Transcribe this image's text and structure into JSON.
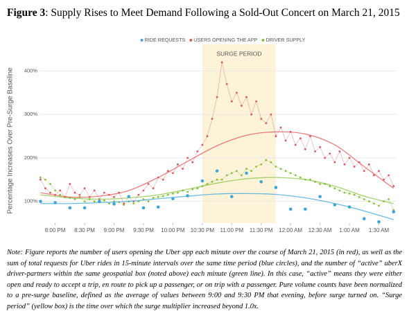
{
  "chart_data": {
    "type": "line",
    "title_label": "Figure 3",
    "title": ": Supply Rises to Meet Demand Following a Sold-Out Concert on March 21, 2015",
    "y_label": "Percentage Increases Over Pre-Surge Baseline",
    "surge": {
      "label": "SURGE PERIOD",
      "x": [
        1350,
        1425
      ],
      "color": "#fcf3d9"
    },
    "xlim": [
      1184,
      1548
    ],
    "xticks": [
      {
        "value": 1200,
        "label": "8:00 PM"
      },
      {
        "value": 1230,
        "label": "8:30 PM"
      },
      {
        "value": 1260,
        "label": "9:00 PM"
      },
      {
        "value": 1290,
        "label": "9:30 PM"
      },
      {
        "value": 1320,
        "label": "10:00 PM"
      },
      {
        "value": 1350,
        "label": "10:30 PM"
      },
      {
        "value": 1380,
        "label": "11:00 PM"
      },
      {
        "value": 1410,
        "label": "11:30 PM"
      },
      {
        "value": 1440,
        "label": "12:00 AM"
      },
      {
        "value": 1470,
        "label": "12:30 AM"
      },
      {
        "value": 1500,
        "label": "1:00 AM"
      },
      {
        "value": 1530,
        "label": "1:30 AM"
      }
    ],
    "ylim": [
      50,
      455
    ],
    "yticks": [
      {
        "value": 100,
        "label": "100%"
      },
      {
        "value": 200,
        "label": "200%"
      },
      {
        "value": 300,
        "label": "300%"
      },
      {
        "value": 400,
        "label": "400%"
      }
    ],
    "grid": true,
    "legend": "top",
    "x": [
      1185,
      1190,
      1195,
      1200,
      1205,
      1210,
      1215,
      1220,
      1225,
      1230,
      1235,
      1240,
      1245,
      1250,
      1255,
      1260,
      1265,
      1270,
      1275,
      1280,
      1285,
      1290,
      1295,
      1300,
      1305,
      1310,
      1315,
      1320,
      1325,
      1330,
      1335,
      1340,
      1345,
      1350,
      1355,
      1360,
      1365,
      1370,
      1375,
      1380,
      1385,
      1390,
      1395,
      1400,
      1405,
      1410,
      1415,
      1420,
      1425,
      1430,
      1435,
      1440,
      1445,
      1450,
      1455,
      1460,
      1465,
      1470,
      1475,
      1480,
      1485,
      1490,
      1495,
      1500,
      1505,
      1510,
      1515,
      1520,
      1525,
      1530,
      1535,
      1540,
      1545
    ],
    "fit_x": [
      1185,
      1215,
      1245,
      1275,
      1305,
      1335,
      1365,
      1395,
      1425,
      1455,
      1485,
      1515,
      1545
    ],
    "series": [
      {
        "name": "RIDE REQUESTS",
        "color": "#3aa7d8",
        "style": "circles",
        "x": [
          1185,
          1200,
          1215,
          1230,
          1245,
          1260,
          1275,
          1290,
          1305,
          1320,
          1335,
          1350,
          1365,
          1380,
          1395,
          1410,
          1425,
          1440,
          1455,
          1470,
          1485,
          1500,
          1515,
          1530,
          1545
        ],
        "values": [
          100,
          97,
          85,
          85,
          100,
          94,
          111,
          85,
          87,
          106,
          113,
          147,
          170,
          111,
          165,
          145,
          132,
          82,
          82,
          111,
          92,
          87,
          60,
          53,
          76
        ],
        "fit": [
          95,
          95,
          97,
          100,
          106,
          112,
          117,
          118,
          116,
          108,
          95,
          78,
          58
        ]
      },
      {
        "name": "USERS OPENING THE APP",
        "color": "#e0565b",
        "style": "dots",
        "values": [
          150,
          130,
          120,
          115,
          125,
          110,
          140,
          120,
          115,
          130,
          110,
          125,
          105,
          120,
          115,
          110,
          120,
          95,
          110,
          100,
          115,
          125,
          140,
          130,
          155,
          150,
          170,
          165,
          185,
          175,
          200,
          190,
          215,
          230,
          250,
          290,
          340,
          420,
          370,
          330,
          350,
          320,
          340,
          300,
          330,
          290,
          280,
          300,
          250,
          270,
          240,
          260,
          230,
          245,
          220,
          250,
          215,
          225,
          200,
          210,
          190,
          215,
          185,
          200,
          180,
          190,
          170,
          185,
          160,
          170,
          150,
          160,
          135
        ],
        "fit": [
          120,
          110,
          112,
          125,
          155,
          192,
          228,
          252,
          260,
          255,
          230,
          180,
          130
        ]
      },
      {
        "name": "DRIVER SUPPLY",
        "color": "#86c13d",
        "style": "dots",
        "values": [
          155,
          150,
          140,
          125,
          115,
          110,
          108,
          105,
          110,
          100,
          105,
          100,
          98,
          102,
          95,
          100,
          98,
          92,
          100,
          95,
          100,
          105,
          100,
          108,
          110,
          112,
          115,
          118,
          120,
          125,
          122,
          128,
          130,
          135,
          140,
          145,
          150,
          150,
          160,
          165,
          170,
          160,
          175,
          170,
          180,
          185,
          195,
          190,
          180,
          175,
          170,
          165,
          160,
          155,
          150,
          150,
          145,
          140,
          140,
          135,
          130,
          125,
          120,
          118,
          115,
          110,
          105,
          100,
          95,
          90,
          100,
          105,
          80
        ],
        "fit": [
          115,
          108,
          105,
          108,
          115,
          128,
          142,
          152,
          155,
          150,
          135,
          112,
          95
        ]
      }
    ],
    "note": "Note: Figure reports the number of users opening the Uber app each minute over the course of March 21, 2015 (in red), as well as the sum of total requests for Uber rides in 15-minute intervals over the same time period (blue circles), and the number of “active” uberX driver-partners within the same geospatial box (noted above) each minute (green line). In this case, “active” means they were either open and ready to accept a trip, en route to pick up a passenger, or on trip with a passenger. Pure volume counts have been normalized to a pre-surge baseline, defined as the average of values between 9:00 and 9:30 PM that evening, before surge turned on. “Surge period” (yellow box) is the time over which the surge multiplier increased beyond 1.0x."
  }
}
